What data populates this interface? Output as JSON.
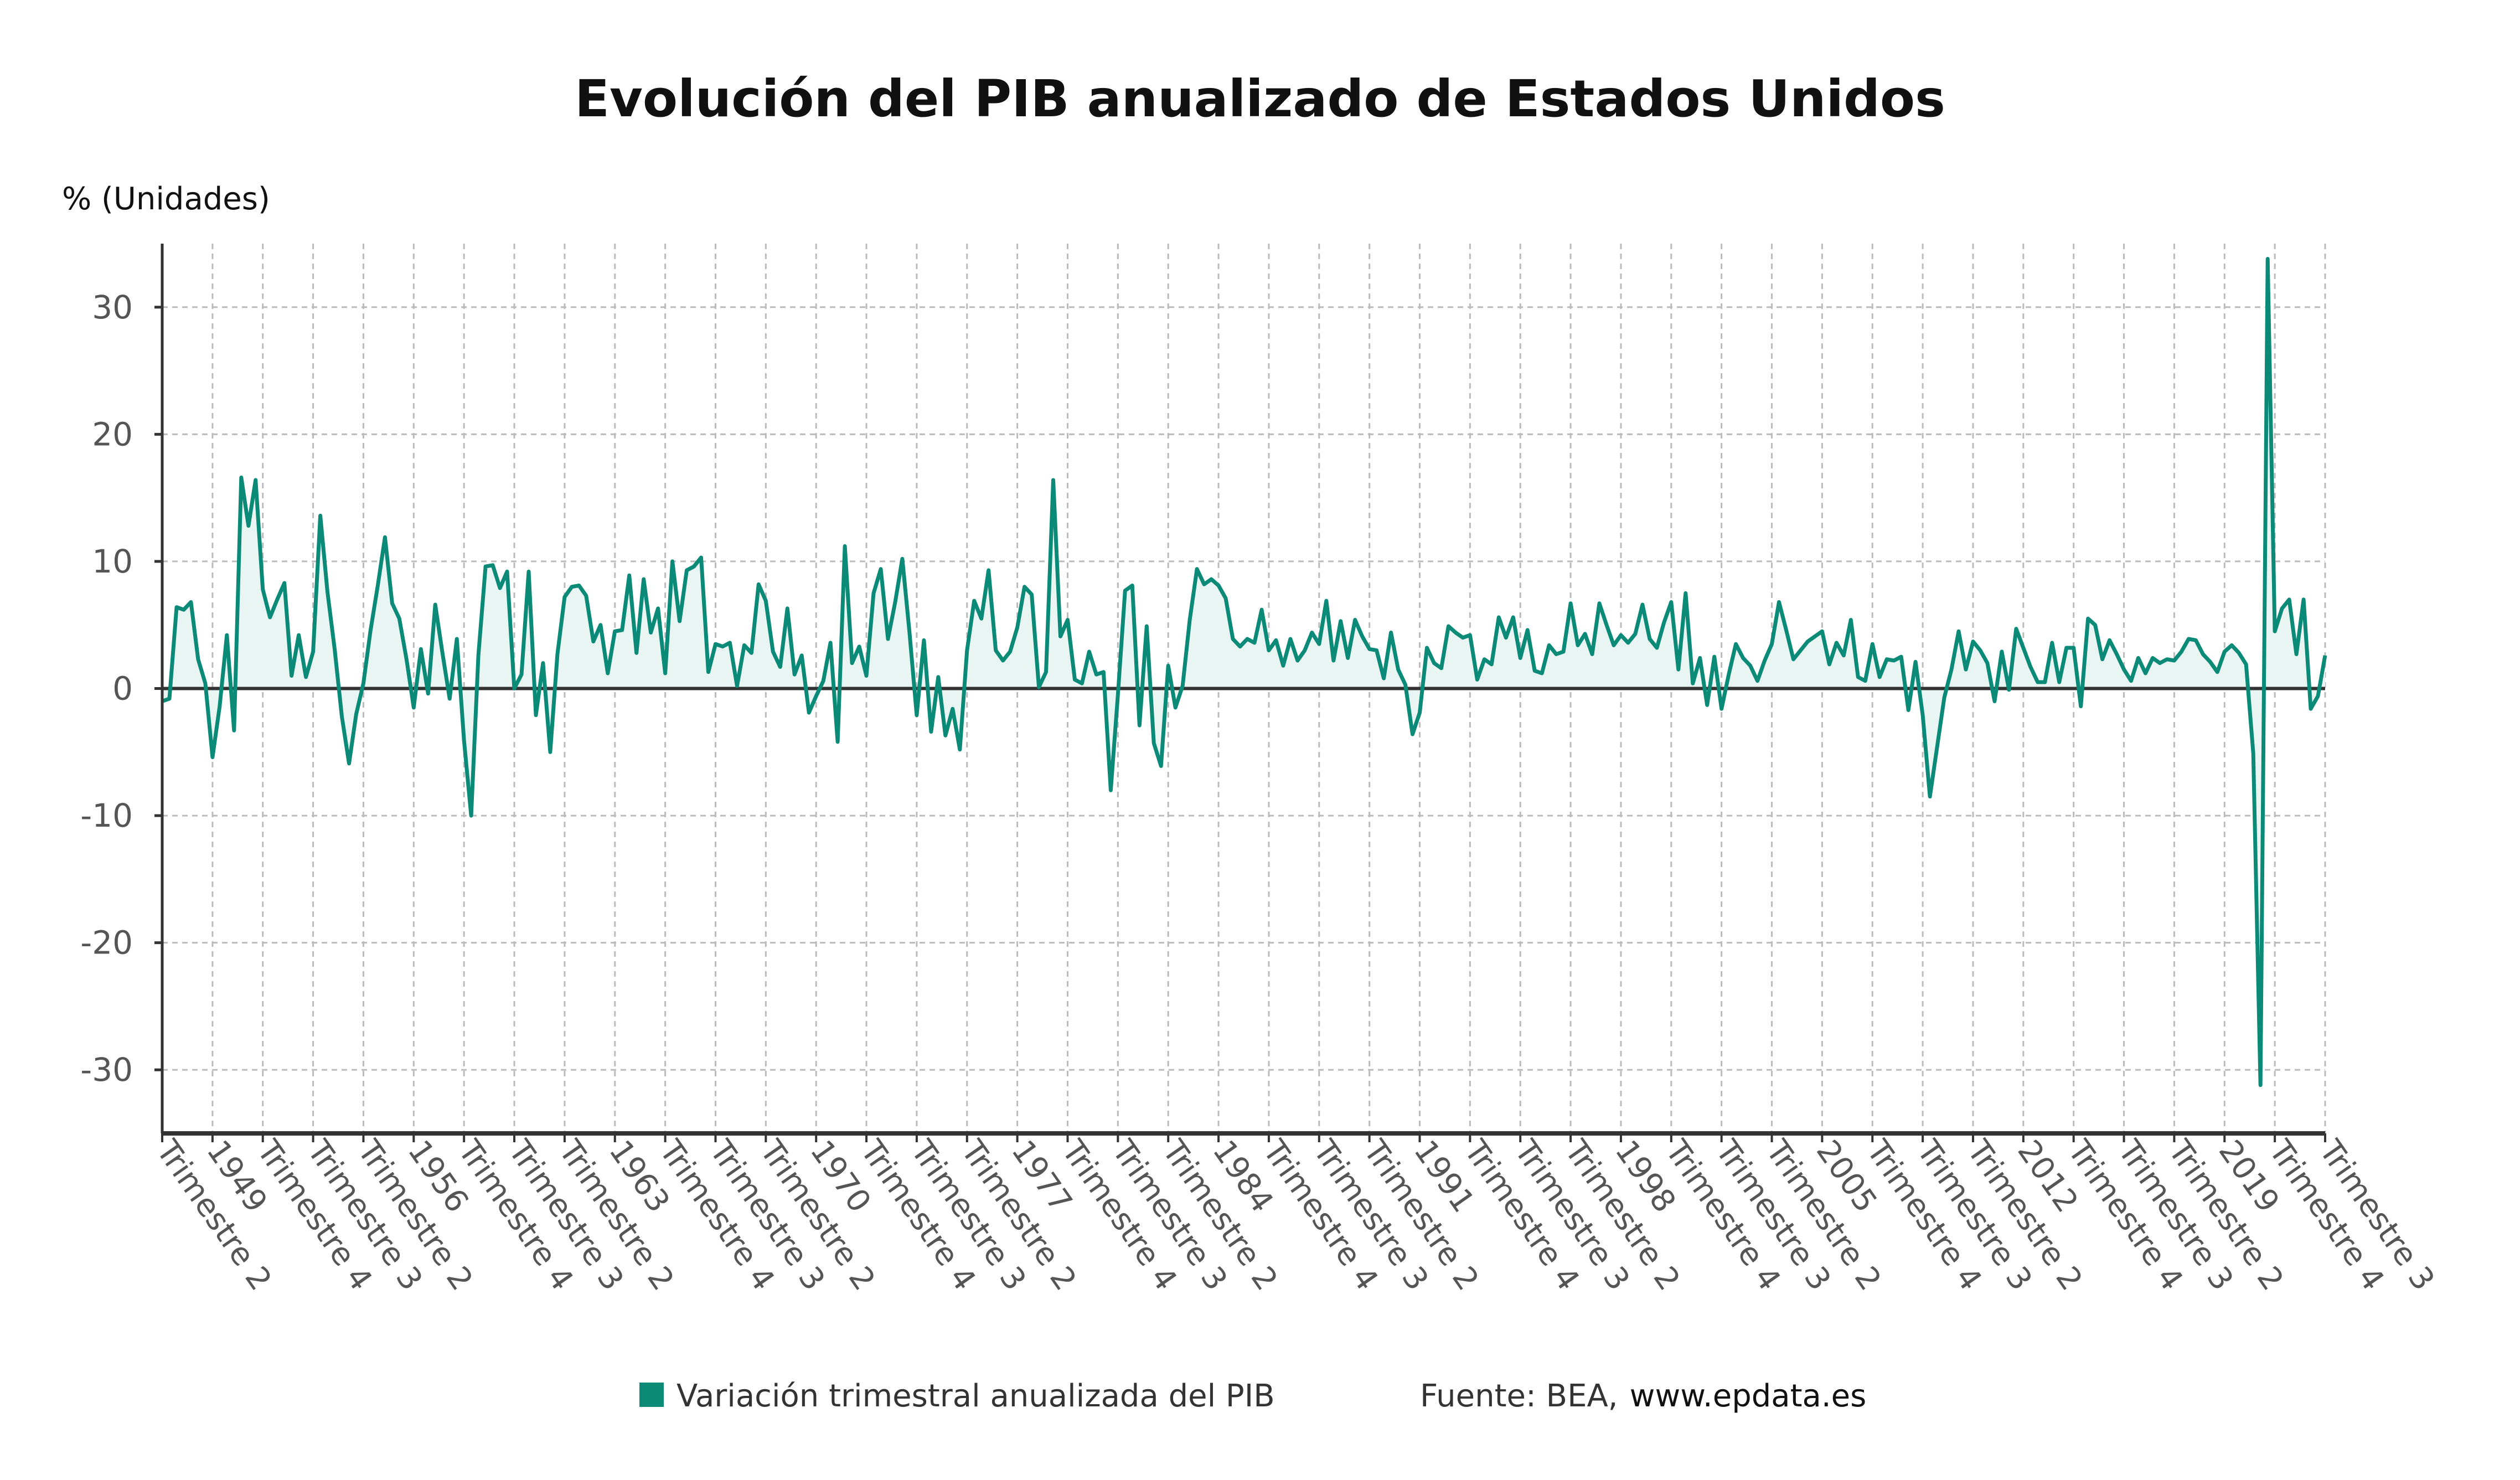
{
  "chart_data": {
    "type": "line",
    "title": "Evolución del PIB anualizado de Estados Unidos",
    "ylabel": "% (Unidades)",
    "xlabel": "",
    "ylim": [
      -35,
      35
    ],
    "yticks": [
      30,
      20,
      10,
      0,
      -10,
      -20,
      -30
    ],
    "grid": true,
    "legend_position": "bottom",
    "x_start": "1947 Trimestre 2",
    "x_end": "2022 Trimestre 3",
    "x_tick_labels": [
      "Trimestre 2",
      "1949",
      "Trimestre 4",
      "Trimestre 3",
      "Trimestre 2",
      "1956",
      "Trimestre 4",
      "Trimestre 3",
      "Trimestre 2",
      "1963",
      "Trimestre 4",
      "Trimestre 3",
      "Trimestre 2",
      "1970",
      "Trimestre 4",
      "Trimestre 3",
      "Trimestre 2",
      "1977",
      "Trimestre 4",
      "Trimestre 3",
      "Trimestre 2",
      "1984",
      "Trimestre 4",
      "Trimestre 3",
      "Trimestre 2",
      "1991",
      "Trimestre 4",
      "Trimestre 3",
      "Trimestre 2",
      "1998",
      "Trimestre 4",
      "Trimestre 3",
      "Trimestre 2",
      "2005",
      "Trimestre 4",
      "Trimestre 3",
      "Trimestre 2",
      "2012",
      "Trimestre 4",
      "Trimestre 3",
      "Trimestre 2",
      "2019",
      "Trimestre 4",
      "Trimestre 3"
    ],
    "series": [
      {
        "name": "Variación trimestral anualizada del PIB",
        "color": "#0b8a78",
        "values": [
          -1.0,
          -0.8,
          6.4,
          6.2,
          6.8,
          2.3,
          0.4,
          -5.4,
          -1.4,
          4.2,
          -3.3,
          16.6,
          12.8,
          16.4,
          7.8,
          5.6,
          7.0,
          8.3,
          1.0,
          4.2,
          0.9,
          2.9,
          13.6,
          7.6,
          3.1,
          -2.2,
          -5.9,
          -2.0,
          0.4,
          4.6,
          8.1,
          11.9,
          6.7,
          5.5,
          2.3,
          -1.5,
          3.1,
          -0.4,
          6.6,
          2.8,
          -0.8,
          3.9,
          -4.1,
          -10.0,
          2.6,
          9.6,
          9.7,
          7.9,
          9.2,
          0.0,
          1.1,
          9.2,
          -2.1,
          2.0,
          -5.0,
          2.7,
          7.2,
          8.0,
          8.1,
          7.3,
          3.7,
          5.0,
          1.2,
          4.5,
          4.6,
          8.9,
          2.8,
          8.6,
          4.4,
          6.3,
          1.2,
          10.0,
          5.3,
          9.3,
          9.6,
          10.3,
          1.3,
          3.5,
          3.3,
          3.6,
          0.2,
          3.4,
          2.8,
          8.2,
          6.9,
          2.9,
          1.7,
          6.3,
          1.1,
          2.6,
          -1.9,
          -0.6,
          0.6,
          3.6,
          -4.2,
          11.2,
          2.0,
          3.3,
          1.0,
          7.5,
          9.4,
          3.9,
          6.8,
          10.2,
          4.4,
          -2.1,
          3.8,
          -3.4,
          0.9,
          -3.7,
          -1.6,
          -4.8,
          3.0,
          6.9,
          5.5,
          9.3,
          3.0,
          2.2,
          2.9,
          4.8,
          8.0,
          7.4,
          0.1,
          1.3,
          16.4,
          4.1,
          5.4,
          0.7,
          0.4,
          2.9,
          1.1,
          1.3,
          -8.0,
          -0.5,
          7.7,
          8.1,
          -2.9,
          4.9,
          -4.3,
          -6.1,
          1.8,
          -1.5,
          0.2,
          5.4,
          9.4,
          8.2,
          8.6,
          8.1,
          7.1,
          3.9,
          3.3,
          3.9,
          3.6,
          6.2,
          3.0,
          3.8,
          1.8,
          3.9,
          2.2,
          3.0,
          4.4,
          3.5,
          6.9,
          2.2,
          5.3,
          2.4,
          5.4,
          4.1,
          3.1,
          3.0,
          0.8,
          4.4,
          1.5,
          0.3,
          -3.6,
          -1.9,
          3.2,
          2.0,
          1.6,
          4.9,
          4.4,
          4.0,
          4.2,
          0.7,
          2.3,
          1.9,
          5.6,
          4.0,
          5.6,
          2.4,
          4.6,
          1.4,
          1.2,
          3.4,
          2.7,
          2.9,
          6.7,
          3.4,
          4.3,
          2.7,
          6.7,
          5.0,
          3.4,
          4.2,
          3.6,
          4.3,
          6.6,
          3.9,
          3.2,
          5.2,
          6.8,
          1.5,
          7.5,
          0.4,
          2.4,
          -1.3,
          2.5,
          -1.6,
          1.1,
          3.5,
          2.4,
          1.8,
          0.6,
          2.2,
          3.5,
          6.8,
          4.6,
          2.3,
          3.0,
          3.7,
          4.1,
          4.5,
          1.9,
          3.6,
          2.6,
          5.4,
          0.9,
          0.6,
          3.5,
          0.9,
          2.3,
          2.2,
          2.5,
          -1.7,
          2.1,
          -2.1,
          -8.5,
          -4.6,
          -0.7,
          1.5,
          4.5,
          1.5,
          3.7,
          3.0,
          2.0,
          -1.0,
          2.9,
          -0.1,
          4.7,
          3.2,
          1.7,
          0.5,
          0.5,
          3.6,
          0.5,
          3.2,
          3.2,
          -1.4,
          5.5,
          5.0,
          2.3,
          3.8,
          2.7,
          1.5,
          0.6,
          2.4,
          1.2,
          2.4,
          2.0,
          2.3,
          2.2,
          2.9,
          3.9,
          3.8,
          2.7,
          2.1,
          1.3,
          2.9,
          3.4,
          2.8,
          1.9,
          -5.1,
          -31.2,
          33.8,
          4.5,
          6.3,
          7.0,
          2.7,
          7.0,
          -1.6,
          -0.6,
          2.6
        ]
      }
    ],
    "fill_color": "#e9f5f2",
    "source": "Fuente: BEA,",
    "source_link": "www.epdata.es"
  }
}
